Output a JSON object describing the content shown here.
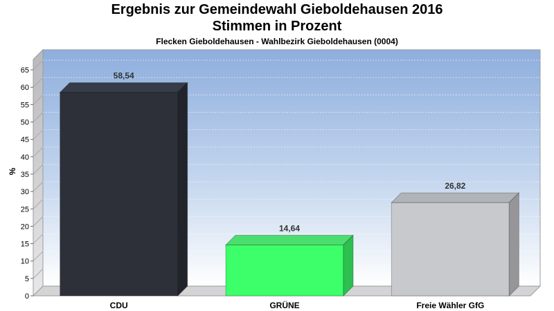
{
  "chart_data": {
    "type": "bar",
    "title": "Ergebnis zur Gemeindewahl Gieboldehausen 2016",
    "subtitle": "Stimmen in Prozent",
    "subtitle2": "Flecken Gieboldehausen - Wahlbezirk Gieboldehausen (0004)",
    "ylabel": "%",
    "xlabel": "",
    "ylim": [
      0,
      68
    ],
    "yticks": [
      0,
      5,
      10,
      15,
      20,
      25,
      30,
      35,
      40,
      45,
      50,
      55,
      60,
      65
    ],
    "grid": true,
    "categories": [
      "CDU",
      "GRÜNE",
      "Freie Wähler GfG"
    ],
    "values": [
      58.54,
      14.64,
      26.82
    ],
    "value_labels": [
      "58,54",
      "14,64",
      "26,82"
    ],
    "colors": [
      "#2d3038",
      "#3cff6a",
      "#c8c9cc"
    ]
  }
}
